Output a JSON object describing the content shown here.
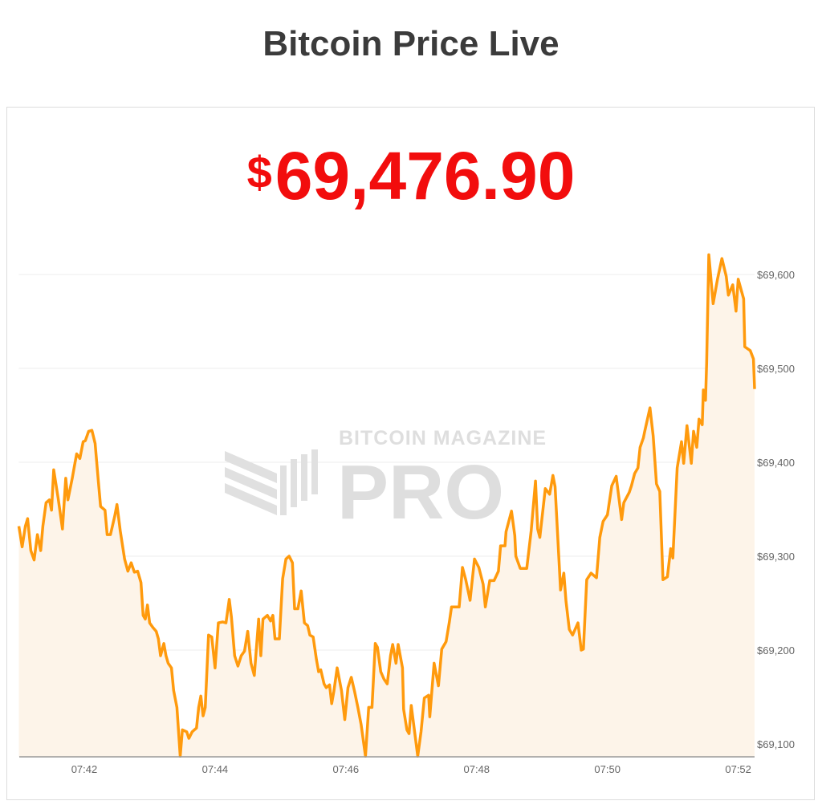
{
  "header": {
    "title": "Bitcoin Price Live"
  },
  "price": {
    "currency_symbol": "$",
    "value": "69,476.90",
    "color": "#f20d0d"
  },
  "watermark": {
    "line1": "BITCOIN MAGAZINE",
    "line2": "PRO"
  },
  "chart_data": {
    "type": "area",
    "title": "",
    "xlabel": "",
    "ylabel": "",
    "line_color": "#ff9a0d",
    "fill_color": "#fdf4e9",
    "grid": true,
    "y_axis_position": "right",
    "ylim": [
      69084,
      69630
    ],
    "xlim": [
      "07:41:00",
      "07:52:15"
    ],
    "x_ticks": [
      "07:42",
      "07:44",
      "07:46",
      "07:48",
      "07:50",
      "07:52"
    ],
    "y_ticks": [
      {
        "value": 69100,
        "label": "$69,100"
      },
      {
        "value": 69200,
        "label": "$69,200"
      },
      {
        "value": 69300,
        "label": "$69,300"
      },
      {
        "value": 69400,
        "label": "$69,400"
      },
      {
        "value": 69500,
        "label": "$69,500"
      },
      {
        "value": 69600,
        "label": "$69,600"
      }
    ],
    "series": [
      {
        "points": [
          [
            "07:41:00",
            69332
          ],
          [
            "07:41:03",
            69310
          ],
          [
            "07:41:06",
            69332
          ],
          [
            "07:41:08",
            69340
          ],
          [
            "07:41:11",
            69306
          ],
          [
            "07:41:14",
            69296
          ],
          [
            "07:41:17",
            69323
          ],
          [
            "07:41:20",
            69306
          ],
          [
            "07:41:22",
            69332
          ],
          [
            "07:41:25",
            69357
          ],
          [
            "07:41:28",
            69360
          ],
          [
            "07:41:30",
            69349
          ],
          [
            "07:41:32",
            69392
          ],
          [
            "07:41:36",
            69362
          ],
          [
            "07:41:40",
            69329
          ],
          [
            "07:41:43",
            69383
          ],
          [
            "07:41:45",
            69360
          ],
          [
            "07:41:49",
            69383
          ],
          [
            "07:41:51",
            69396
          ],
          [
            "07:41:53",
            69409
          ],
          [
            "07:41:56",
            69404
          ],
          [
            "07:41:59",
            69422
          ],
          [
            "07:42:01",
            69423
          ],
          [
            "07:42:04",
            69433
          ],
          [
            "07:42:07",
            69434
          ],
          [
            "07:42:10",
            69420
          ],
          [
            "07:42:13",
            69379
          ],
          [
            "07:42:15",
            69353
          ],
          [
            "07:42:19",
            69349
          ],
          [
            "07:42:21",
            69323
          ],
          [
            "07:42:24",
            69323
          ],
          [
            "07:42:28",
            69343
          ],
          [
            "07:42:30",
            69355
          ],
          [
            "07:42:33",
            69327
          ],
          [
            "07:42:37",
            69297
          ],
          [
            "07:42:40",
            69284
          ],
          [
            "07:42:43",
            69293
          ],
          [
            "07:42:46",
            69283
          ],
          [
            "07:42:49",
            69284
          ],
          [
            "07:42:52",
            69272
          ],
          [
            "07:42:54",
            69237
          ],
          [
            "07:42:56",
            69233
          ],
          [
            "07:42:58",
            69248
          ],
          [
            "07:43:00",
            69229
          ],
          [
            "07:43:03",
            69224
          ],
          [
            "07:43:06",
            69220
          ],
          [
            "07:43:08",
            69212
          ],
          [
            "07:43:10",
            69194
          ],
          [
            "07:43:13",
            69207
          ],
          [
            "07:43:15",
            69194
          ],
          [
            "07:43:17",
            69186
          ],
          [
            "07:43:20",
            69181
          ],
          [
            "07:43:22",
            69157
          ],
          [
            "07:43:25",
            69139
          ],
          [
            "07:43:28",
            69087
          ],
          [
            "07:43:30",
            69115
          ],
          [
            "07:43:34",
            69113
          ],
          [
            "07:43:36",
            69106
          ],
          [
            "07:43:39",
            69113
          ],
          [
            "07:43:43",
            69117
          ],
          [
            "07:43:45",
            69139
          ],
          [
            "07:43:47",
            69151
          ],
          [
            "07:43:49",
            69130
          ],
          [
            "07:43:51",
            69139
          ],
          [
            "07:43:54",
            69216
          ],
          [
            "07:43:57",
            69214
          ],
          [
            "07:44:00",
            69181
          ],
          [
            "07:44:03",
            69229
          ],
          [
            "07:44:07",
            69230
          ],
          [
            "07:44:10",
            69229
          ],
          [
            "07:44:13",
            69254
          ],
          [
            "07:44:15",
            69235
          ],
          [
            "07:44:18",
            69194
          ],
          [
            "07:44:21",
            69183
          ],
          [
            "07:44:24",
            69194
          ],
          [
            "07:44:27",
            69199
          ],
          [
            "07:44:30",
            69220
          ],
          [
            "07:44:33",
            69186
          ],
          [
            "07:44:36",
            69173
          ],
          [
            "07:44:40",
            69233
          ],
          [
            "07:44:42",
            69194
          ],
          [
            "07:44:44",
            69233
          ],
          [
            "07:44:48",
            69237
          ],
          [
            "07:44:51",
            69231
          ],
          [
            "07:44:53",
            69237
          ],
          [
            "07:44:55",
            69212
          ],
          [
            "07:44:59",
            69212
          ],
          [
            "07:45:02",
            69276
          ],
          [
            "07:45:05",
            69297
          ],
          [
            "07:45:08",
            69300
          ],
          [
            "07:45:11",
            69293
          ],
          [
            "07:45:13",
            69244
          ],
          [
            "07:45:16",
            69244
          ],
          [
            "07:45:19",
            69263
          ],
          [
            "07:45:22",
            69229
          ],
          [
            "07:45:25",
            69226
          ],
          [
            "07:45:27",
            69216
          ],
          [
            "07:45:30",
            69214
          ],
          [
            "07:45:33",
            69190
          ],
          [
            "07:45:35",
            69177
          ],
          [
            "07:45:37",
            69179
          ],
          [
            "07:45:40",
            69164
          ],
          [
            "07:45:42",
            69160
          ],
          [
            "07:45:45",
            69163
          ],
          [
            "07:45:47",
            69143
          ],
          [
            "07:45:49",
            69156
          ],
          [
            "07:45:52",
            69181
          ],
          [
            "07:45:54",
            69169
          ],
          [
            "07:45:56",
            69157
          ],
          [
            "07:45:59",
            69126
          ],
          [
            "07:46:02",
            69160
          ],
          [
            "07:46:05",
            69171
          ],
          [
            "07:46:08",
            69156
          ],
          [
            "07:46:11",
            69139
          ],
          [
            "07:46:14",
            69121
          ],
          [
            "07:46:18",
            69087
          ],
          [
            "07:46:21",
            69139
          ],
          [
            "07:46:24",
            69139
          ],
          [
            "07:46:27",
            69207
          ],
          [
            "07:46:29",
            69203
          ],
          [
            "07:46:32",
            69177
          ],
          [
            "07:46:35",
            69169
          ],
          [
            "07:46:38",
            69164
          ],
          [
            "07:46:41",
            69194
          ],
          [
            "07:46:43",
            69206
          ],
          [
            "07:46:46",
            69186
          ],
          [
            "07:46:48",
            69206
          ],
          [
            "07:46:52",
            69181
          ],
          [
            "07:46:53",
            69137
          ],
          [
            "07:46:56",
            69115
          ],
          [
            "07:46:58",
            69111
          ],
          [
            "07:47:00",
            69141
          ],
          [
            "07:47:06",
            69087
          ],
          [
            "07:47:09",
            69113
          ],
          [
            "07:47:12",
            69149
          ],
          [
            "07:47:16",
            69152
          ],
          [
            "07:47:17",
            69129
          ],
          [
            "07:47:21",
            69186
          ],
          [
            "07:47:25",
            69162
          ],
          [
            "07:47:28",
            69201
          ],
          [
            "07:47:32",
            69209
          ],
          [
            "07:47:35",
            69230
          ],
          [
            "07:47:37",
            69246
          ],
          [
            "07:47:44",
            69246
          ],
          [
            "07:47:47",
            69288
          ],
          [
            "07:47:50",
            69275
          ],
          [
            "07:47:54",
            69253
          ],
          [
            "07:47:58",
            69297
          ],
          [
            "07:48:02",
            69288
          ],
          [
            "07:48:06",
            69270
          ],
          [
            "07:48:08",
            69246
          ],
          [
            "07:48:12",
            69274
          ],
          [
            "07:48:16",
            69274
          ],
          [
            "07:48:20",
            69284
          ],
          [
            "07:48:22",
            69311
          ],
          [
            "07:48:26",
            69311
          ],
          [
            "07:48:27",
            69326
          ],
          [
            "07:48:32",
            69348
          ],
          [
            "07:48:35",
            69322
          ],
          [
            "07:48:36",
            69300
          ],
          [
            "07:48:40",
            69287
          ],
          [
            "07:48:46",
            69287
          ],
          [
            "07:48:50",
            69327
          ],
          [
            "07:48:54",
            69380
          ],
          [
            "07:48:56",
            69329
          ],
          [
            "07:48:58",
            69320
          ],
          [
            "07:49:03",
            69372
          ],
          [
            "07:49:07",
            69366
          ],
          [
            "07:49:10",
            69386
          ],
          [
            "07:49:12",
            69374
          ],
          [
            "07:49:17",
            69264
          ],
          [
            "07:49:20",
            69282
          ],
          [
            "07:49:22",
            69252
          ],
          [
            "07:49:25",
            69222
          ],
          [
            "07:49:28",
            69216
          ],
          [
            "07:49:33",
            69229
          ],
          [
            "07:49:36",
            69200
          ],
          [
            "07:49:38",
            69201
          ],
          [
            "07:49:41",
            69275
          ],
          [
            "07:49:45",
            69282
          ],
          [
            "07:49:50",
            69277
          ],
          [
            "07:49:53",
            69320
          ],
          [
            "07:49:56",
            69337
          ],
          [
            "07:50:00",
            69344
          ],
          [
            "07:50:04",
            69375
          ],
          [
            "07:50:08",
            69385
          ],
          [
            "07:50:13",
            69339
          ],
          [
            "07:50:15",
            69357
          ],
          [
            "07:50:20",
            69368
          ],
          [
            "07:50:22",
            69375
          ],
          [
            "07:50:25",
            69388
          ],
          [
            "07:50:28",
            69394
          ],
          [
            "07:50:30",
            69416
          ],
          [
            "07:50:33",
            69426
          ],
          [
            "07:50:34",
            69432
          ],
          [
            "07:50:39",
            69458
          ],
          [
            "07:50:42",
            69428
          ],
          [
            "07:50:45",
            69377
          ],
          [
            "07:50:48",
            69369
          ],
          [
            "07:50:51",
            69275
          ],
          [
            "07:50:55",
            69278
          ],
          [
            "07:50:58",
            69308
          ],
          [
            "07:51:00",
            69298
          ],
          [
            "07:51:04",
            69394
          ],
          [
            "07:51:08",
            69422
          ],
          [
            "07:51:10",
            69399
          ],
          [
            "07:51:13",
            69439
          ],
          [
            "07:51:17",
            69399
          ],
          [
            "07:51:19",
            69433
          ],
          [
            "07:51:22",
            69416
          ],
          [
            "07:51:24",
            69446
          ],
          [
            "07:51:27",
            69440
          ],
          [
            "07:51:28",
            69477
          ],
          [
            "07:51:30",
            69466
          ],
          [
            "07:51:31",
            69506
          ],
          [
            "07:51:33",
            69621
          ],
          [
            "07:51:37",
            69569
          ],
          [
            "07:51:41",
            69595
          ],
          [
            "07:51:45",
            69617
          ],
          [
            "07:51:49",
            69598
          ],
          [
            "07:51:51",
            69578
          ],
          [
            "07:51:55",
            69589
          ],
          [
            "07:51:58",
            69561
          ],
          [
            "07:52:00",
            69595
          ],
          [
            "07:52:05",
            69574
          ],
          [
            "07:52:06",
            69523
          ],
          [
            "07:52:11",
            69519
          ],
          [
            "07:52:14",
            69510
          ],
          [
            "07:52:15",
            69478
          ]
        ]
      }
    ]
  }
}
